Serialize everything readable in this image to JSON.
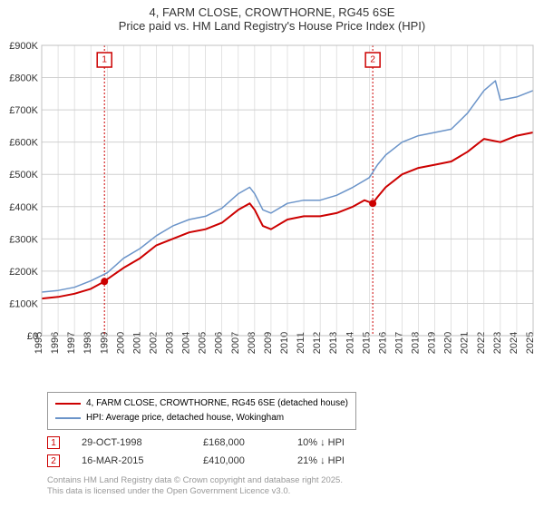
{
  "title": "4, FARM CLOSE, CROWTHORNE, RG45 6SE",
  "subtitle": "Price paid vs. HM Land Registry's House Price Index (HPI)",
  "chart": {
    "type": "line",
    "background_color": "#ffffff",
    "grid_color": "#d0d0d0",
    "x_axis": {
      "years": [
        1995,
        1996,
        1997,
        1998,
        1999,
        2000,
        2001,
        2002,
        2003,
        2004,
        2005,
        2006,
        2007,
        2008,
        2009,
        2010,
        2011,
        2012,
        2013,
        2014,
        2015,
        2016,
        2017,
        2018,
        2019,
        2020,
        2021,
        2022,
        2023,
        2024,
        2025
      ],
      "label_fontsize": 11,
      "label_rotation": -90
    },
    "y_axis": {
      "min": 0,
      "max": 900000,
      "tick_step": 100000,
      "tick_labels": [
        "£0",
        "£100K",
        "£200K",
        "£300K",
        "£400K",
        "£500K",
        "£600K",
        "£700K",
        "£800K",
        "£900K"
      ],
      "label_fontsize": 11
    },
    "series": [
      {
        "name": "price_paid",
        "label": "4, FARM CLOSE, CROWTHORNE, RG45 6SE (detached house)",
        "color": "#cc0000",
        "line_width": 2,
        "data": [
          [
            1995,
            115000
          ],
          [
            1996,
            120000
          ],
          [
            1997,
            130000
          ],
          [
            1998,
            145000
          ],
          [
            1998.83,
            168000
          ],
          [
            1999,
            175000
          ],
          [
            2000,
            210000
          ],
          [
            2001,
            240000
          ],
          [
            2002,
            280000
          ],
          [
            2003,
            300000
          ],
          [
            2004,
            320000
          ],
          [
            2005,
            330000
          ],
          [
            2006,
            350000
          ],
          [
            2007,
            390000
          ],
          [
            2007.7,
            410000
          ],
          [
            2008,
            390000
          ],
          [
            2008.5,
            340000
          ],
          [
            2009,
            330000
          ],
          [
            2010,
            360000
          ],
          [
            2011,
            370000
          ],
          [
            2012,
            370000
          ],
          [
            2013,
            380000
          ],
          [
            2014,
            400000
          ],
          [
            2014.7,
            420000
          ],
          [
            2015.21,
            410000
          ],
          [
            2015.5,
            430000
          ],
          [
            2016,
            460000
          ],
          [
            2017,
            500000
          ],
          [
            2018,
            520000
          ],
          [
            2019,
            530000
          ],
          [
            2020,
            540000
          ],
          [
            2021,
            570000
          ],
          [
            2022,
            610000
          ],
          [
            2023,
            600000
          ],
          [
            2024,
            620000
          ],
          [
            2025,
            630000
          ]
        ]
      },
      {
        "name": "hpi",
        "label": "HPI: Average price, detached house, Wokingham",
        "color": "#6b94c9",
        "line_width": 1.5,
        "data": [
          [
            1995,
            135000
          ],
          [
            1996,
            140000
          ],
          [
            1997,
            150000
          ],
          [
            1998,
            170000
          ],
          [
            1999,
            195000
          ],
          [
            2000,
            240000
          ],
          [
            2001,
            270000
          ],
          [
            2002,
            310000
          ],
          [
            2003,
            340000
          ],
          [
            2004,
            360000
          ],
          [
            2005,
            370000
          ],
          [
            2006,
            395000
          ],
          [
            2007,
            440000
          ],
          [
            2007.7,
            460000
          ],
          [
            2008,
            440000
          ],
          [
            2008.5,
            390000
          ],
          [
            2009,
            380000
          ],
          [
            2010,
            410000
          ],
          [
            2011,
            420000
          ],
          [
            2012,
            420000
          ],
          [
            2013,
            435000
          ],
          [
            2014,
            460000
          ],
          [
            2015,
            490000
          ],
          [
            2015.5,
            530000
          ],
          [
            2016,
            560000
          ],
          [
            2017,
            600000
          ],
          [
            2018,
            620000
          ],
          [
            2019,
            630000
          ],
          [
            2020,
            640000
          ],
          [
            2021,
            690000
          ],
          [
            2022,
            760000
          ],
          [
            2022.7,
            790000
          ],
          [
            2023,
            730000
          ],
          [
            2024,
            740000
          ],
          [
            2025,
            760000
          ]
        ]
      }
    ],
    "markers": [
      {
        "id": "1",
        "x_year": 1998.83,
        "line_color": "#cc0000",
        "dash": "2,2"
      },
      {
        "id": "2",
        "x_year": 2015.21,
        "line_color": "#cc0000",
        "dash": "2,2"
      }
    ]
  },
  "legend": {
    "border_color": "#999999",
    "fontsize": 10,
    "items": [
      {
        "color": "#cc0000",
        "label": "4, FARM CLOSE, CROWTHORNE, RG45 6SE (detached house)"
      },
      {
        "color": "#6b94c9",
        "label": "HPI: Average price, detached house, Wokingham"
      }
    ]
  },
  "marker_table": {
    "rows": [
      {
        "id": "1",
        "date": "29-OCT-1998",
        "price": "£168,000",
        "delta": "10% ↓ HPI"
      },
      {
        "id": "2",
        "date": "16-MAR-2015",
        "price": "£410,000",
        "delta": "21% ↓ HPI"
      }
    ]
  },
  "footnote_line1": "Contains HM Land Registry data © Crown copyright and database right 2025.",
  "footnote_line2": "This data is licensed under the Open Government Licence v3.0."
}
